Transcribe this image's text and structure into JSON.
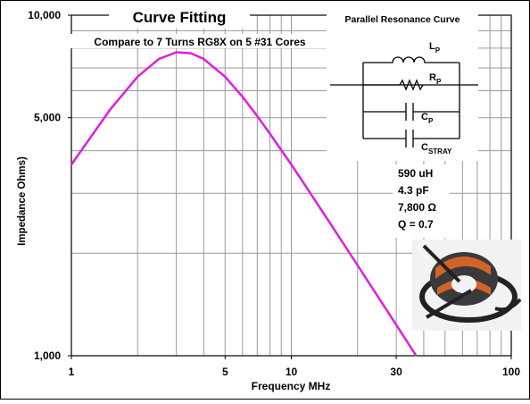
{
  "chart_data": {
    "type": "line",
    "title": "Curve Fitting",
    "subtitle": "Compare to 7 Turns RG8X on 5 #31 Cores",
    "x_label": "Frequency  MHz",
    "y_label": "Impedance  Ohms)",
    "x": [
      1,
      1.5,
      2,
      2.5,
      3,
      3.5,
      4,
      5,
      6,
      7,
      8,
      10,
      12,
      15,
      20,
      25,
      30,
      35,
      37
    ],
    "values": [
      3642,
      5282,
      6597,
      7441,
      7782,
      7729,
      7437,
      6592,
      5759,
      5056,
      4484,
      3642,
      3051,
      2451,
      1844,
      1477,
      1232,
      1056,
      999
    ],
    "color": "#e01ee0",
    "xscale": "log",
    "yscale": "log",
    "xlim": [
      1,
      100
    ],
    "ylim": [
      1000,
      10000
    ],
    "xticks": [
      1,
      5,
      10,
      30,
      100
    ],
    "yticks": [
      {
        "value": 1000,
        "label": "1,000"
      },
      {
        "value": 5000,
        "label": "5,000"
      },
      {
        "value": 10000,
        "label": "10,000"
      }
    ],
    "xgrid": [
      2,
      3,
      4,
      5,
      6,
      7,
      8,
      9,
      10,
      20,
      30,
      40,
      50,
      60,
      70,
      80,
      90
    ],
    "ygrid": [
      2000,
      3000,
      4000,
      5000,
      6000,
      7000,
      8000,
      9000
    ],
    "grid": true,
    "inset": {
      "title": "Parallel Resonance Curve",
      "components": [
        {
          "main": "L",
          "sub": "P"
        },
        {
          "main": "R",
          "sub": "P"
        },
        {
          "main": "C",
          "sub": "P"
        },
        {
          "main": "C",
          "sub": "STRAY"
        }
      ],
      "parameters": [
        "590 uH",
        "4.3 pF",
        "7,800 Ω",
        "Q = 0.7"
      ]
    }
  }
}
